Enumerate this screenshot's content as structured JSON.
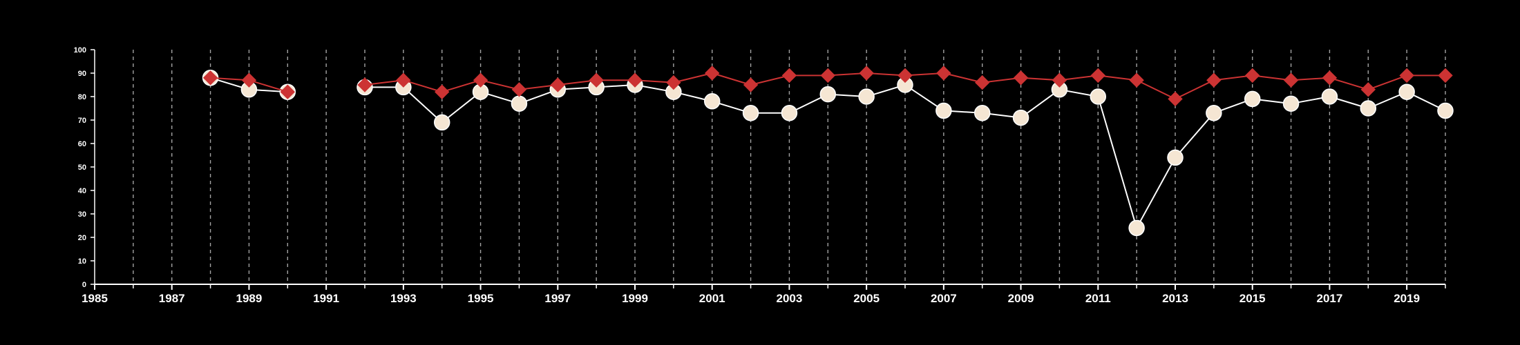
{
  "chart_data": {
    "type": "line",
    "title": "",
    "xlabel": "",
    "ylabel": "",
    "xlim": [
      1985,
      2020
    ],
    "ylim": [
      0,
      100
    ],
    "x_ticks": [
      1985,
      1987,
      1989,
      1991,
      1993,
      1995,
      1997,
      1999,
      2001,
      2003,
      2005,
      2007,
      2009,
      2011,
      2013,
      2015,
      2017,
      2019
    ],
    "y_ticks": [
      0,
      10,
      20,
      30,
      40,
      50,
      60,
      70,
      80,
      90,
      100
    ],
    "grid": "vertical dashed lines at every year",
    "legend": "none",
    "series": [
      {
        "marker": "circle",
        "color": "#f5e6d3",
        "line_color": "#ffffff",
        "points": [
          {
            "x": 1988,
            "y": 88
          },
          {
            "x": 1989,
            "y": 83
          },
          {
            "x": 1990,
            "y": 82
          },
          {
            "x": 1992,
            "y": 84
          },
          {
            "x": 1993,
            "y": 84
          },
          {
            "x": 1994,
            "y": 69
          },
          {
            "x": 1995,
            "y": 82
          },
          {
            "x": 1996,
            "y": 77
          },
          {
            "x": 1997,
            "y": 83
          },
          {
            "x": 1998,
            "y": 84
          },
          {
            "x": 1999,
            "y": 85
          },
          {
            "x": 2000,
            "y": 82
          },
          {
            "x": 2001,
            "y": 78
          },
          {
            "x": 2002,
            "y": 73
          },
          {
            "x": 2003,
            "y": 73
          },
          {
            "x": 2004,
            "y": 81
          },
          {
            "x": 2005,
            "y": 80
          },
          {
            "x": 2006,
            "y": 85
          },
          {
            "x": 2007,
            "y": 74
          },
          {
            "x": 2008,
            "y": 73
          },
          {
            "x": 2009,
            "y": 71
          },
          {
            "x": 2010,
            "y": 83
          },
          {
            "x": 2011,
            "y": 80
          },
          {
            "x": 2012,
            "y": 24
          },
          {
            "x": 2013,
            "y": 54
          },
          {
            "x": 2014,
            "y": 73
          },
          {
            "x": 2015,
            "y": 79
          },
          {
            "x": 2016,
            "y": 77
          },
          {
            "x": 2017,
            "y": 80
          },
          {
            "x": 2018,
            "y": 75
          },
          {
            "x": 2019,
            "y": 82
          },
          {
            "x": 2020,
            "y": 74
          }
        ]
      },
      {
        "marker": "diamond",
        "color": "#cc3333",
        "line_color": "#cc3333",
        "points": [
          {
            "x": 1988,
            "y": 88
          },
          {
            "x": 1989,
            "y": 87
          },
          {
            "x": 1990,
            "y": 82
          },
          {
            "x": 1992,
            "y": 85
          },
          {
            "x": 1993,
            "y": 87
          },
          {
            "x": 1994,
            "y": 82
          },
          {
            "x": 1995,
            "y": 87
          },
          {
            "x": 1996,
            "y": 83
          },
          {
            "x": 1997,
            "y": 85
          },
          {
            "x": 1998,
            "y": 87
          },
          {
            "x": 1999,
            "y": 87
          },
          {
            "x": 2000,
            "y": 86
          },
          {
            "x": 2001,
            "y": 90
          },
          {
            "x": 2002,
            "y": 85
          },
          {
            "x": 2003,
            "y": 89
          },
          {
            "x": 2004,
            "y": 89
          },
          {
            "x": 2005,
            "y": 90
          },
          {
            "x": 2006,
            "y": 89
          },
          {
            "x": 2007,
            "y": 90
          },
          {
            "x": 2008,
            "y": 86
          },
          {
            "x": 2009,
            "y": 88
          },
          {
            "x": 2010,
            "y": 87
          },
          {
            "x": 2011,
            "y": 89
          },
          {
            "x": 2012,
            "y": 87
          },
          {
            "x": 2013,
            "y": 79
          },
          {
            "x": 2014,
            "y": 87
          },
          {
            "x": 2015,
            "y": 89
          },
          {
            "x": 2016,
            "y": 87
          },
          {
            "x": 2017,
            "y": 88
          },
          {
            "x": 2018,
            "y": 83
          },
          {
            "x": 2019,
            "y": 89
          },
          {
            "x": 2020,
            "y": 89
          }
        ]
      }
    ],
    "colors": {
      "background": "#000000",
      "axis": "#ffffff",
      "grid": "#cccccc"
    }
  }
}
